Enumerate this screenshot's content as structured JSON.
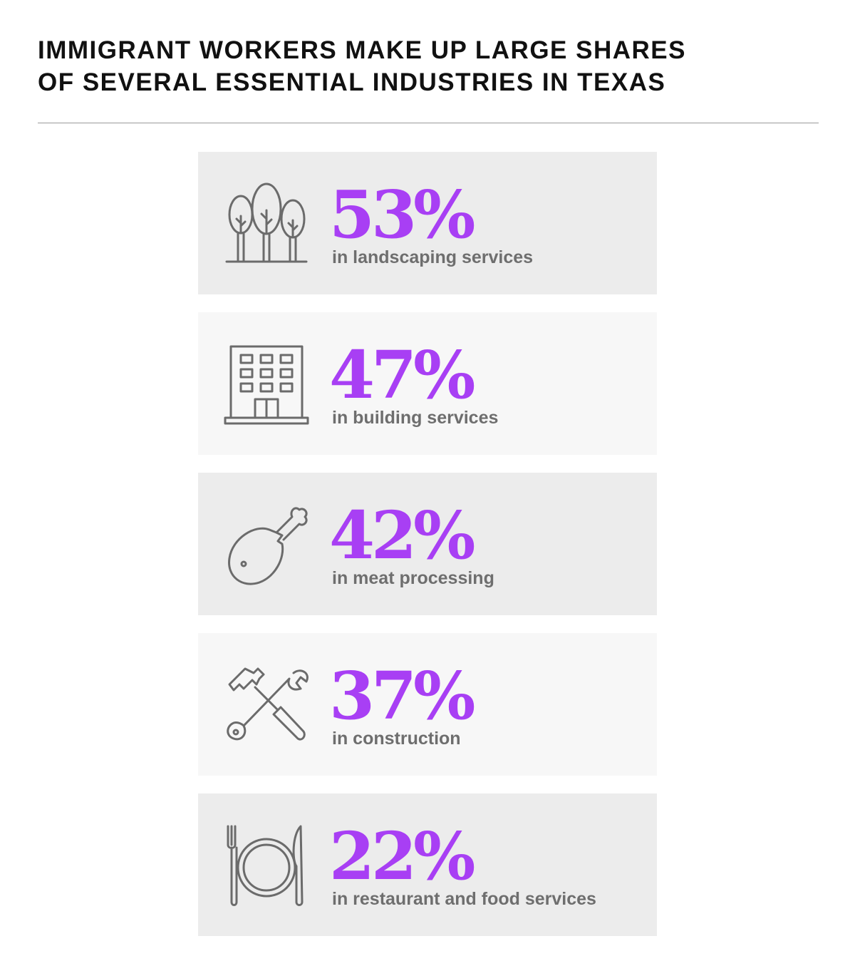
{
  "header": {
    "title_line1": "IMMIGRANT WORKERS MAKE UP LARGE SHARES",
    "title_line2": "OF SEVERAL ESSENTIAL INDUSTRIES IN TEXAS"
  },
  "items": [
    {
      "value": "53%",
      "label": "in landscaping services",
      "icon": "trees-icon"
    },
    {
      "value": "47%",
      "label": "in building services",
      "icon": "building-icon"
    },
    {
      "value": "42%",
      "label": "in meat processing",
      "icon": "drumstick-icon"
    },
    {
      "value": "37%",
      "label": "in construction",
      "icon": "hammer-wrench-icon"
    },
    {
      "value": "22%",
      "label": "in restaurant and food services",
      "icon": "plate-fork-knife-icon"
    }
  ],
  "colors": {
    "accent": "#a83ff4",
    "label": "#6e6e6e",
    "icon_stroke": "#6b6b6b",
    "card_dark": "#ececec",
    "card_light": "#f7f7f7"
  }
}
